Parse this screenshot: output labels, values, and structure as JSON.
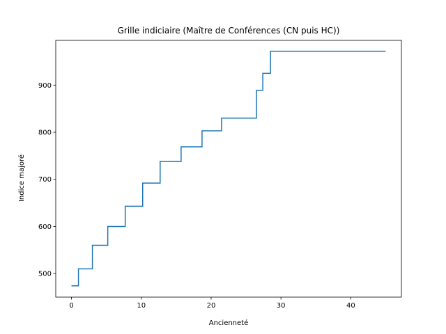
{
  "chart_data": {
    "type": "line",
    "drawstyle": "steps-post",
    "title": "Grille indiciaire (Maître de Conférences (CN puis HC))",
    "xlabel": "Ancienneté",
    "ylabel": "Indice majoré",
    "xlim": [
      -2.25,
      47.25
    ],
    "ylim": [
      450,
      995
    ],
    "xticks": [
      0,
      10,
      20,
      30,
      40
    ],
    "yticks": [
      500,
      600,
      700,
      800,
      900
    ],
    "xtick_labels": [
      "0",
      "10",
      "20",
      "30",
      "40"
    ],
    "ytick_labels": [
      "500",
      "600",
      "700",
      "800",
      "900"
    ],
    "grid": false,
    "legend": "none",
    "series": [
      {
        "color": "#1f77b4",
        "x": [
          0,
          1,
          3,
          5.2,
          7.7,
          10.2,
          12.7,
          15.7,
          18.7,
          21.5,
          26.5,
          27.4,
          28.5,
          45
        ],
        "y": [
          474,
          510,
          560,
          600,
          643,
          692,
          738,
          769,
          803,
          830,
          889,
          925,
          972,
          972
        ]
      }
    ]
  }
}
